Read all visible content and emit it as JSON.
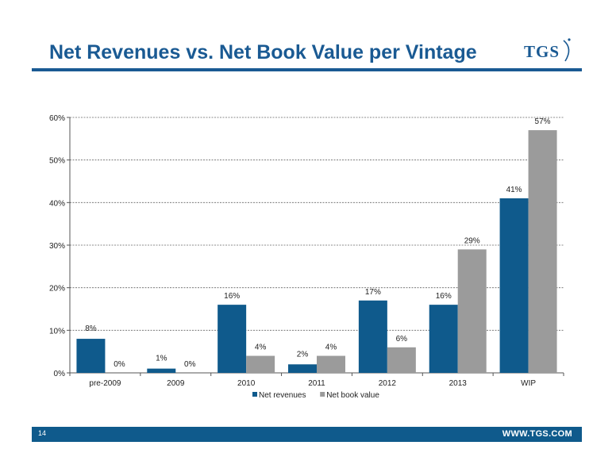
{
  "header": {
    "title": "Net Revenues vs. Net Book Value per Vintage",
    "logo_text": "TGS"
  },
  "footer": {
    "page_number": "14",
    "url": "WWW.TGS.COM"
  },
  "colors": {
    "brand": "#1a5a93",
    "net_revenues": "#0f5a8c",
    "net_book_value": "#9b9b9b"
  },
  "chart_data": {
    "type": "bar",
    "title": "",
    "xlabel": "",
    "ylabel": "",
    "categories": [
      "pre-2009",
      "2009",
      "2010",
      "2011",
      "2012",
      "2013",
      "WIP"
    ],
    "series": [
      {
        "name": "Net revenues",
        "values": [
          8,
          1,
          16,
          2,
          17,
          16,
          41
        ],
        "labels": [
          "8%",
          "1%",
          "16%",
          "2%",
          "17%",
          "16%",
          "41%"
        ]
      },
      {
        "name": "Net book value",
        "values": [
          0,
          0,
          4,
          4,
          6,
          29,
          57
        ],
        "labels": [
          "0%",
          "0%",
          "4%",
          "4%",
          "6%",
          "29%",
          "57%"
        ]
      }
    ],
    "ylim": [
      0,
      60
    ],
    "yticks": [
      0,
      10,
      20,
      30,
      40,
      50,
      60
    ],
    "ytick_labels": [
      "0%",
      "10%",
      "20%",
      "30%",
      "40%",
      "50%",
      "60%"
    ],
    "grid": true,
    "legend": "bottom-center"
  }
}
